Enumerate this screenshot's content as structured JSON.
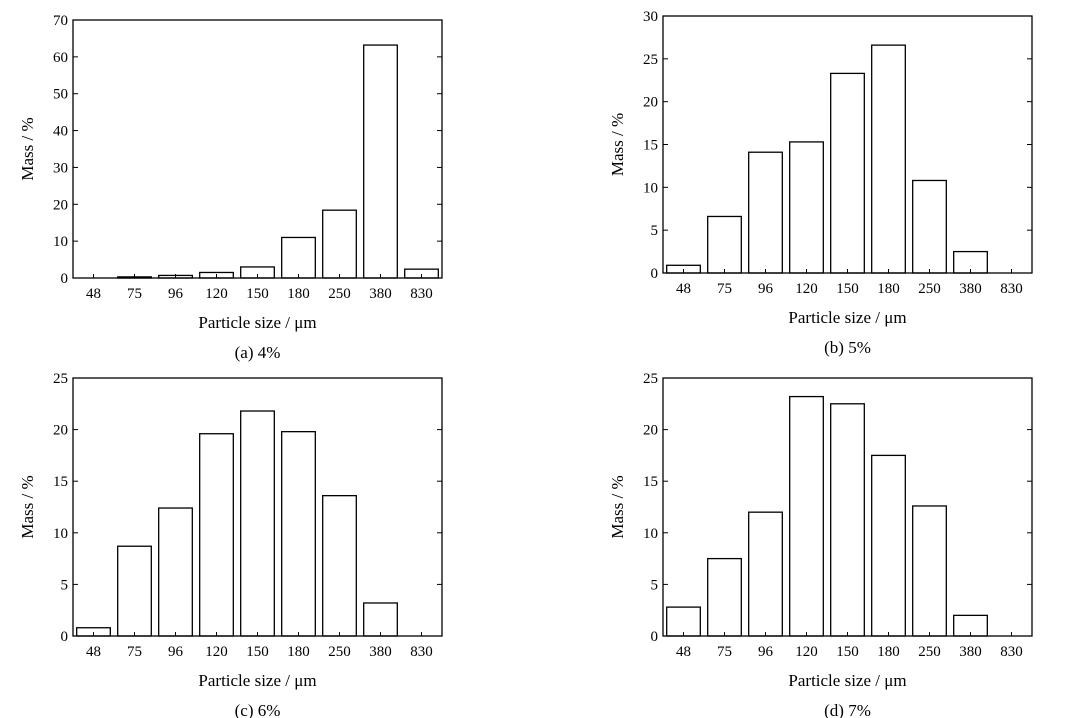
{
  "chart_data": [
    {
      "type": "bar",
      "caption": "(a) 4%",
      "xlabel": "Particle size / μm",
      "ylabel": "Mass / %",
      "categories": [
        "48",
        "75",
        "96",
        "120",
        "150",
        "180",
        "250",
        "380",
        "830"
      ],
      "values": [
        0.0,
        0.3,
        0.7,
        1.5,
        3.0,
        11.0,
        18.4,
        63.2,
        2.4
      ],
      "ylim": [
        0,
        70
      ],
      "yticks": [
        0,
        10,
        20,
        30,
        40,
        50,
        60,
        70
      ]
    },
    {
      "type": "bar",
      "caption": "(b) 5%",
      "xlabel": "Particle size / μm",
      "ylabel": "Mass / %",
      "categories": [
        "48",
        "75",
        "96",
        "120",
        "150",
        "180",
        "250",
        "380",
        "830"
      ],
      "values": [
        0.9,
        6.6,
        14.1,
        15.3,
        23.3,
        26.6,
        10.8,
        2.5,
        0.0
      ],
      "ylim": [
        0,
        30
      ],
      "yticks": [
        0,
        5,
        10,
        15,
        20,
        25,
        30
      ]
    },
    {
      "type": "bar",
      "caption": "(c) 6%",
      "xlabel": "Particle size / μm",
      "ylabel": "Mass / %",
      "categories": [
        "48",
        "75",
        "96",
        "120",
        "150",
        "180",
        "250",
        "380",
        "830"
      ],
      "values": [
        0.8,
        8.7,
        12.4,
        19.6,
        21.8,
        19.8,
        13.6,
        3.2,
        0.0
      ],
      "ylim": [
        0,
        25
      ],
      "yticks": [
        0,
        5,
        10,
        15,
        20,
        25
      ]
    },
    {
      "type": "bar",
      "caption": "(d) 7%",
      "xlabel": "Particle size / μm",
      "ylabel": "Mass / %",
      "categories": [
        "48",
        "75",
        "96",
        "120",
        "150",
        "180",
        "250",
        "380",
        "830"
      ],
      "values": [
        2.8,
        7.5,
        12.0,
        23.2,
        22.5,
        17.5,
        12.6,
        2.0,
        0.0
      ],
      "ylim": [
        0,
        25
      ],
      "yticks": [
        0,
        5,
        10,
        15,
        20,
        25
      ]
    }
  ]
}
